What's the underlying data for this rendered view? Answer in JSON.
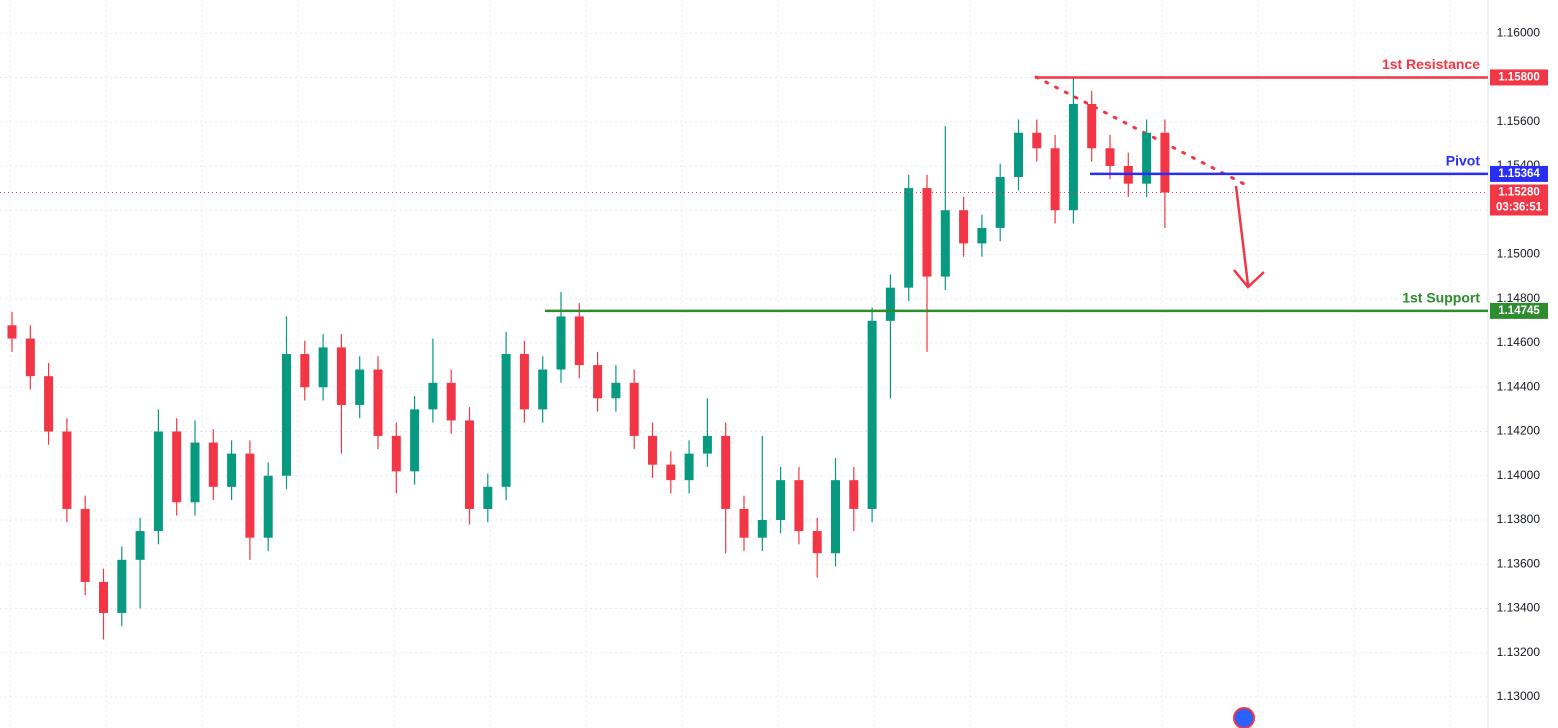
{
  "chart_data": {
    "type": "candlestick",
    "colors": {
      "up": "#089981",
      "down": "#f23645"
    },
    "open": [
      1.1468,
      1.1462,
      1.1445,
      1.142,
      1.1385,
      1.1352,
      1.1338,
      1.1362,
      1.1375,
      1.142,
      1.1388,
      1.1415,
      1.1395,
      1.141,
      1.1372,
      1.14,
      1.1455,
      1.144,
      1.1458,
      1.1432,
      1.1448,
      1.1418,
      1.1402,
      1.143,
      1.1442,
      1.1425,
      1.1385,
      1.1395,
      1.1455,
      1.143,
      1.1448,
      1.1472,
      1.145,
      1.1435,
      1.1442,
      1.1418,
      1.1405,
      1.1398,
      1.141,
      1.1418,
      1.1385,
      1.1372,
      1.138,
      1.1398,
      1.1375,
      1.1365,
      1.1398,
      1.1385,
      1.147,
      1.1485,
      1.153,
      1.149,
      1.152,
      1.1505,
      1.1512,
      1.1535,
      1.1555,
      1.1548,
      1.152,
      1.1568,
      1.1548,
      1.154,
      1.1532,
      1.1555
    ],
    "high": [
      1.1474,
      1.1468,
      1.1451,
      1.1426,
      1.1391,
      1.1358,
      1.1368,
      1.1381,
      1.143,
      1.1426,
      1.1425,
      1.1421,
      1.1416,
      1.1416,
      1.1406,
      1.1472,
      1.1461,
      1.1464,
      1.1464,
      1.1454,
      1.1454,
      1.1424,
      1.1436,
      1.1462,
      1.1448,
      1.1431,
      1.1401,
      1.1465,
      1.1461,
      1.1454,
      1.1483,
      1.1478,
      1.1456,
      1.145,
      1.1448,
      1.1424,
      1.1411,
      1.1416,
      1.1435,
      1.1424,
      1.1391,
      1.1418,
      1.1404,
      1.1404,
      1.1381,
      1.1408,
      1.1404,
      1.1476,
      1.1491,
      1.1536,
      1.1536,
      1.1558,
      1.1526,
      1.1518,
      1.1541,
      1.1561,
      1.1561,
      1.1554,
      1.158,
      1.1574,
      1.1554,
      1.1546,
      1.1561,
      1.1561
    ],
    "low": [
      1.1456,
      1.1439,
      1.1414,
      1.1379,
      1.1346,
      1.1326,
      1.1332,
      1.134,
      1.1369,
      1.1382,
      1.1382,
      1.1389,
      1.1389,
      1.1362,
      1.1366,
      1.1394,
      1.1434,
      1.1434,
      1.141,
      1.1426,
      1.1412,
      1.1392,
      1.1396,
      1.1424,
      1.1419,
      1.1378,
      1.1379,
      1.1389,
      1.1424,
      1.1424,
      1.1442,
      1.1444,
      1.1429,
      1.1429,
      1.1412,
      1.1399,
      1.1392,
      1.1392,
      1.1404,
      1.1365,
      1.1366,
      1.1366,
      1.1374,
      1.1369,
      1.1354,
      1.1359,
      1.1375,
      1.1379,
      1.1435,
      1.1479,
      1.1456,
      1.1484,
      1.1499,
      1.1499,
      1.1506,
      1.1529,
      1.1542,
      1.1514,
      1.1514,
      1.1542,
      1.1534,
      1.1526,
      1.1526,
      1.1512
    ],
    "close": [
      1.1462,
      1.1445,
      1.142,
      1.1385,
      1.1352,
      1.1338,
      1.1362,
      1.1375,
      1.142,
      1.1388,
      1.1415,
      1.1395,
      1.141,
      1.1372,
      1.14,
      1.1455,
      1.144,
      1.1458,
      1.1432,
      1.1448,
      1.1418,
      1.1402,
      1.143,
      1.1442,
      1.1425,
      1.1385,
      1.1395,
      1.1455,
      1.143,
      1.1448,
      1.1472,
      1.145,
      1.1435,
      1.1442,
      1.1418,
      1.1405,
      1.1398,
      1.141,
      1.1418,
      1.1385,
      1.1372,
      1.138,
      1.1398,
      1.1375,
      1.1365,
      1.1398,
      1.1385,
      1.147,
      1.1485,
      1.153,
      1.149,
      1.152,
      1.1505,
      1.1512,
      1.1535,
      1.1555,
      1.1548,
      1.152,
      1.1568,
      1.1548,
      1.154,
      1.1532,
      1.1555,
      1.1528
    ],
    "ylim": [
      1.1286,
      1.1615
    ],
    "yticks": [
      {
        "value": 1.13,
        "label": "1.13000"
      },
      {
        "value": 1.132,
        "label": "1.13200"
      },
      {
        "value": 1.134,
        "label": "1.13400"
      },
      {
        "value": 1.136,
        "label": "1.13600"
      },
      {
        "value": 1.138,
        "label": "1.13800"
      },
      {
        "value": 1.14,
        "label": "1.14000"
      },
      {
        "value": 1.142,
        "label": "1.14200"
      },
      {
        "value": 1.144,
        "label": "1.14400"
      },
      {
        "value": 1.146,
        "label": "1.14600"
      },
      {
        "value": 1.148,
        "label": "1.14800"
      },
      {
        "value": 1.15,
        "label": "1.15000"
      },
      {
        "value": 1.152,
        "label": "1.15200"
      },
      {
        "value": 1.154,
        "label": "1.15400"
      },
      {
        "value": 1.156,
        "label": "1.15600"
      },
      {
        "value": 1.158,
        "label": "1.15800"
      },
      {
        "value": 1.16,
        "label": "1.16000"
      }
    ],
    "grid": true,
    "levels": [
      {
        "name": "1st Resistance",
        "value": 1.158,
        "value_label": "1.15800",
        "color": "#f23645"
      },
      {
        "name": "Pivot",
        "value": 1.15364,
        "value_label": "1.15364",
        "color": "#2a2ef5"
      },
      {
        "name": "1st Support",
        "value": 1.14745,
        "value_label": "1.14745",
        "color": "#2e8b2e"
      }
    ],
    "current_price": {
      "value": 1.1528,
      "value_label": "1.15280",
      "countdown": "03:36:51",
      "color": "#f23645"
    }
  }
}
